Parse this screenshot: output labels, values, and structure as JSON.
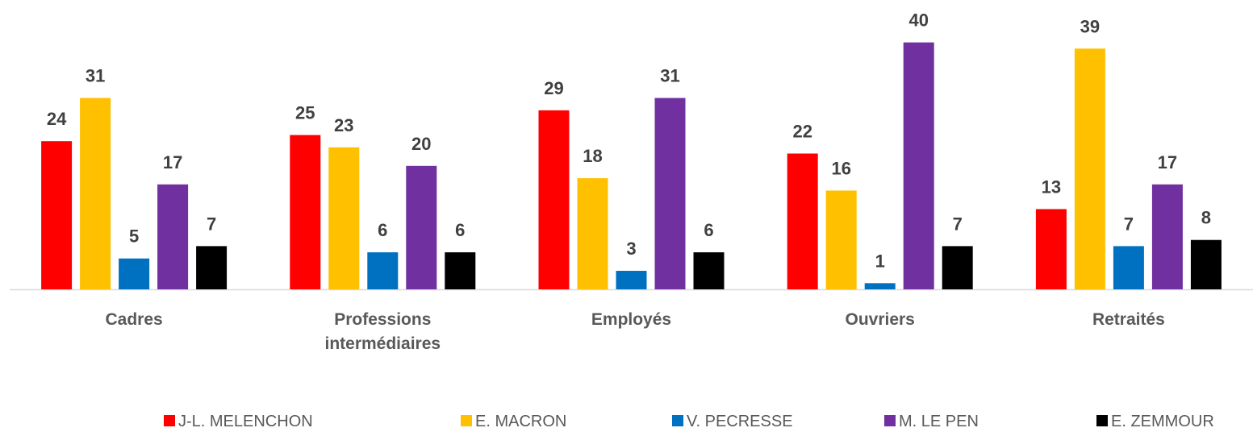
{
  "chart_data": {
    "type": "bar",
    "categories": [
      "Cadres",
      "Professions intermédiaires",
      "Employés",
      "Ouvriers",
      "Retraités"
    ],
    "series": [
      {
        "name": "J-L. MELENCHON",
        "color": "#ff0000",
        "values": [
          24,
          25,
          29,
          22,
          13
        ]
      },
      {
        "name": "E. MACRON",
        "color": "#ffc000",
        "values": [
          31,
          23,
          18,
          16,
          39
        ]
      },
      {
        "name": "V. PECRESSE",
        "color": "#0070c0",
        "values": [
          5,
          6,
          3,
          1,
          7
        ]
      },
      {
        "name": "M. LE PEN",
        "color": "#7030a0",
        "values": [
          17,
          20,
          31,
          40,
          17
        ]
      },
      {
        "name": "E. ZEMMOUR",
        "color": "#000000",
        "values": [
          7,
          6,
          6,
          7,
          8
        ]
      }
    ],
    "ylim": [
      0,
      44
    ],
    "legend": "bottom"
  }
}
